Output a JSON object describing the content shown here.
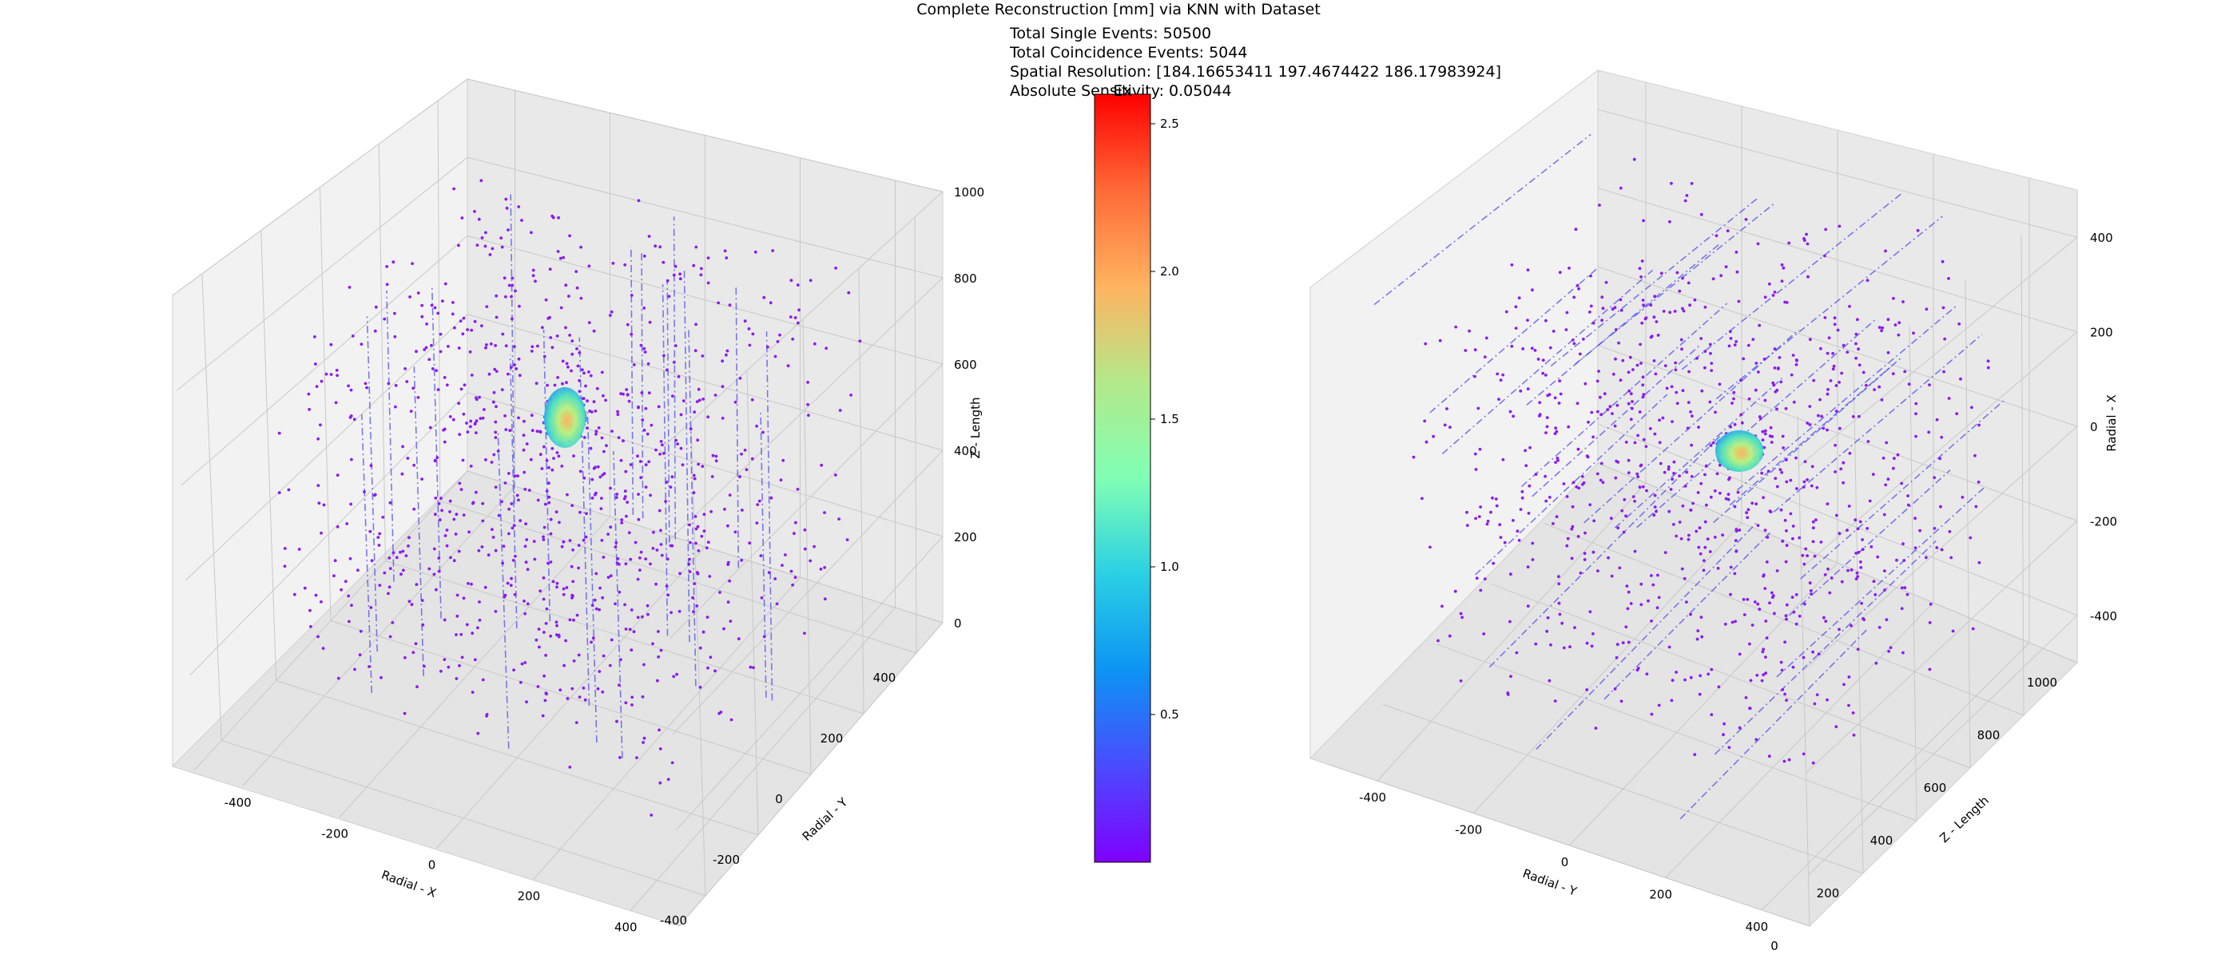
{
  "figure": {
    "title": "Complete Reconstruction [mm] via KNN with Dataset",
    "info_lines": [
      "Total Single Events: 50500",
      "Total Coincidence Events: 5044",
      "Spatial Resolution: [184.16653411 197.4674422  186.17983924]",
      "Absolute Sensitivity: 0.05044"
    ],
    "colorbar_label": "Ex"
  },
  "chart_data": [
    {
      "type": "scatter",
      "kind": "3d-scatter",
      "view": "z-up",
      "axes": {
        "x": {
          "label": "Radial - X",
          "range": [
            -500,
            500
          ],
          "ticks": [
            -400,
            -200,
            0,
            200,
            400
          ]
        },
        "y": {
          "label": "Radial - Y",
          "range": [
            -500,
            500
          ],
          "ticks": [
            -400,
            -200,
            0,
            200,
            400
          ]
        },
        "z": {
          "label": "Z - Length",
          "range": [
            0,
            1000
          ],
          "ticks": [
            0,
            200,
            400,
            600,
            800,
            1000
          ]
        }
      },
      "grid": true,
      "point_cloud": {
        "extent_radial": [
          -400,
          400
        ],
        "extent_z": [
          100,
          900
        ],
        "color_value": 0.05
      },
      "hotspot": {
        "center": [
          0,
          0,
          500
        ],
        "radius": 40,
        "peak_value": 2.5
      },
      "lines_of_response": {
        "style": "dash-dot",
        "color": "#5050ee",
        "direction": "z"
      }
    },
    {
      "type": "scatter",
      "kind": "3d-scatter",
      "view": "z-horizontal",
      "axes": {
        "x": {
          "label": "Radial - X",
          "range": [
            -500,
            500
          ],
          "ticks": [
            400,
            200,
            0,
            -200,
            -400
          ]
        },
        "y": {
          "label": "Radial - Y",
          "range": [
            -500,
            500
          ],
          "ticks": [
            -400,
            -200,
            0,
            200,
            400
          ]
        },
        "z": {
          "label": "Z - Length",
          "range": [
            0,
            1000
          ],
          "ticks": [
            0,
            200,
            400,
            600,
            800,
            1000
          ]
        }
      },
      "grid": true,
      "point_cloud": {
        "extent_radial": [
          -400,
          400
        ],
        "extent_z": [
          100,
          900
        ],
        "color_value": 0.05
      },
      "hotspot": {
        "center": [
          0,
          0,
          500
        ],
        "radius": 40,
        "peak_value": 2.5
      },
      "lines_of_response": {
        "style": "dash-dot",
        "color": "#5050ee",
        "direction": "z"
      }
    },
    {
      "type": "colorbar",
      "colormap": "rainbow",
      "range": [
        0.0,
        2.6
      ],
      "ticks": [
        0.5,
        1.0,
        1.5,
        2.0,
        2.5
      ],
      "tick_labels": [
        "0.5",
        "1.0",
        "1.5",
        "2.0",
        "2.5"
      ]
    }
  ]
}
